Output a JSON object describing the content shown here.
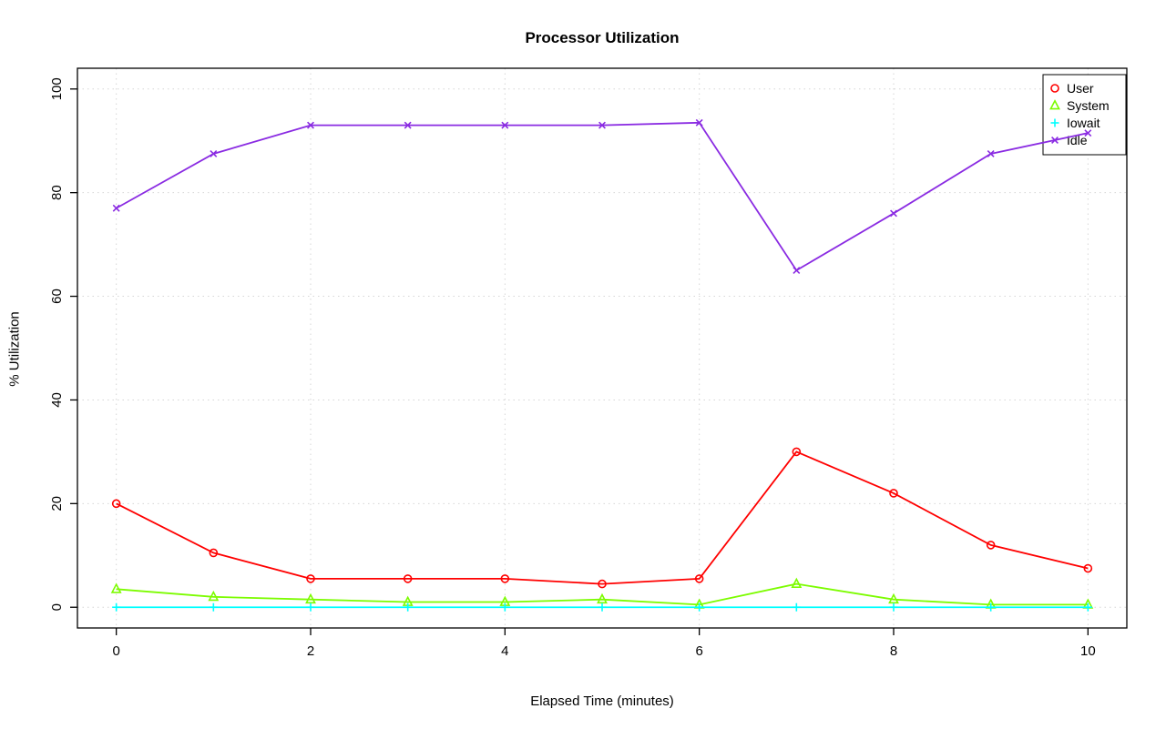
{
  "chart_data": {
    "type": "line",
    "title": "Processor Utilization",
    "xlabel": "Elapsed Time (minutes)",
    "ylabel": "% Utilization",
    "x": [
      0,
      1,
      2,
      3,
      4,
      5,
      6,
      7,
      8,
      9,
      10
    ],
    "series": [
      {
        "name": "User",
        "color": "#ff0000",
        "marker": "circle",
        "values": [
          20,
          10.5,
          5.5,
          5.5,
          5.5,
          4.5,
          5.5,
          30,
          22,
          12,
          7.5
        ]
      },
      {
        "name": "System",
        "color": "#7cfc00",
        "marker": "triangle",
        "values": [
          3.5,
          2,
          1.5,
          1,
          1,
          1.5,
          0.5,
          4.5,
          1.5,
          0.5,
          0.5
        ]
      },
      {
        "name": "Iowait",
        "color": "#00ffff",
        "marker": "plus",
        "values": [
          0,
          0,
          0,
          0,
          0,
          0,
          0,
          0,
          0,
          0,
          0
        ]
      },
      {
        "name": "Idle",
        "color": "#8a2be2",
        "marker": "x",
        "values": [
          77,
          87.5,
          93,
          93,
          93,
          93,
          93.5,
          65,
          76,
          87.5,
          91.5
        ]
      }
    ],
    "xlim": [
      -0.4,
      10.4
    ],
    "ylim": [
      -4,
      104
    ],
    "xticks": [
      0,
      2,
      4,
      6,
      8,
      10
    ],
    "yticks": [
      0,
      20,
      40,
      60,
      80,
      100
    ],
    "grid": true,
    "grid_color": "#d6d6d6",
    "axis_color": "#000000",
    "legend_position": "top-right"
  }
}
